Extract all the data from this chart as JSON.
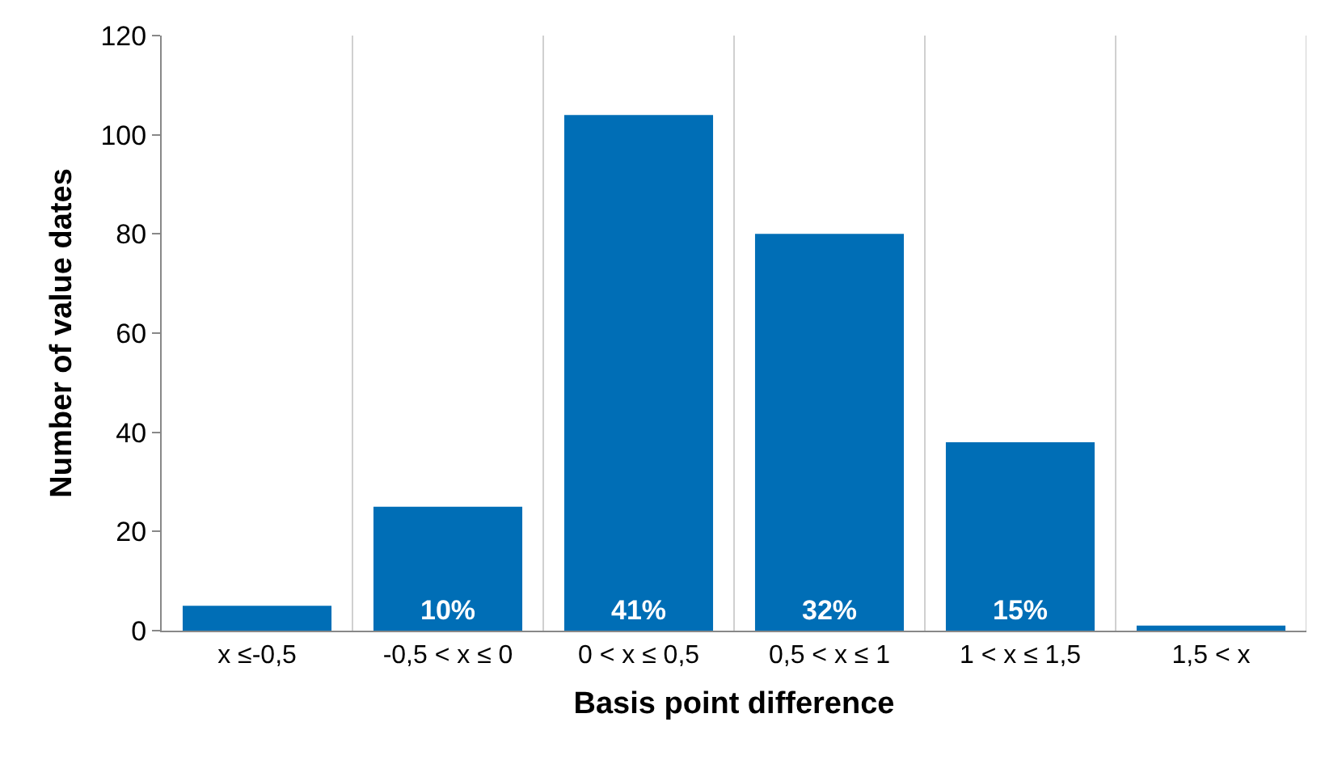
{
  "chart_data": {
    "type": "bar",
    "xlabel": "Basis point difference",
    "ylabel": "Number of value dates",
    "categories": [
      "x ≤-0,5",
      "-0,5 < x ≤ 0",
      "0 < x ≤ 0,5",
      "0,5 < x ≤ 1",
      "1 < x ≤ 1,5",
      "1,5 < x"
    ],
    "values": [
      5,
      25,
      104,
      80,
      38,
      1
    ],
    "annotations": [
      "10%",
      "41%",
      "32%",
      "15%"
    ],
    "color": "#006eb6",
    "ylim": [
      0,
      120
    ],
    "yticks": [
      0,
      20,
      40,
      60,
      80,
      100,
      120
    ],
    "grid": "x"
  }
}
